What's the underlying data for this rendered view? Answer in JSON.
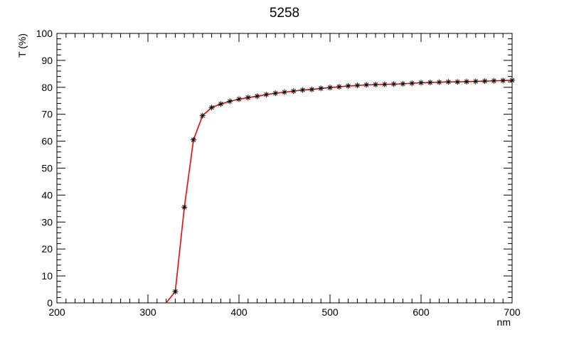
{
  "chart_data": {
    "type": "line",
    "title": "5258",
    "xlabel": "nm",
    "ylabel": "T (%)",
    "xlim": [
      200,
      700
    ],
    "ylim": [
      0,
      100
    ],
    "x_ticks": [
      200,
      300,
      400,
      500,
      600,
      700
    ],
    "y_ticks": [
      0,
      10,
      20,
      30,
      40,
      50,
      60,
      70,
      80,
      90,
      100
    ],
    "grid": false,
    "line_color": "#ff0000",
    "marker": "asterisk",
    "marker_color": "#000000",
    "series": [
      {
        "x": [
          320,
          330,
          340,
          350,
          360,
          370,
          380,
          390,
          400,
          410,
          420,
          430,
          440,
          450,
          460,
          470,
          480,
          490,
          500,
          510,
          520,
          530,
          540,
          550,
          560,
          570,
          580,
          590,
          600,
          610,
          620,
          630,
          640,
          650,
          660,
          670,
          680,
          690,
          700
        ],
        "y": [
          0,
          4.2,
          35.5,
          60.5,
          69.5,
          72.5,
          73.8,
          74.8,
          75.6,
          76.2,
          76.7,
          77.3,
          77.8,
          78.2,
          78.6,
          79.0,
          79.2,
          79.6,
          79.9,
          80.2,
          80.5,
          80.7,
          80.9,
          81.0,
          81.1,
          81.2,
          81.3,
          81.5,
          81.7,
          81.8,
          81.9,
          82.0,
          82.0,
          82.1,
          82.2,
          82.3,
          82.4,
          82.5,
          82.6
        ]
      }
    ]
  }
}
